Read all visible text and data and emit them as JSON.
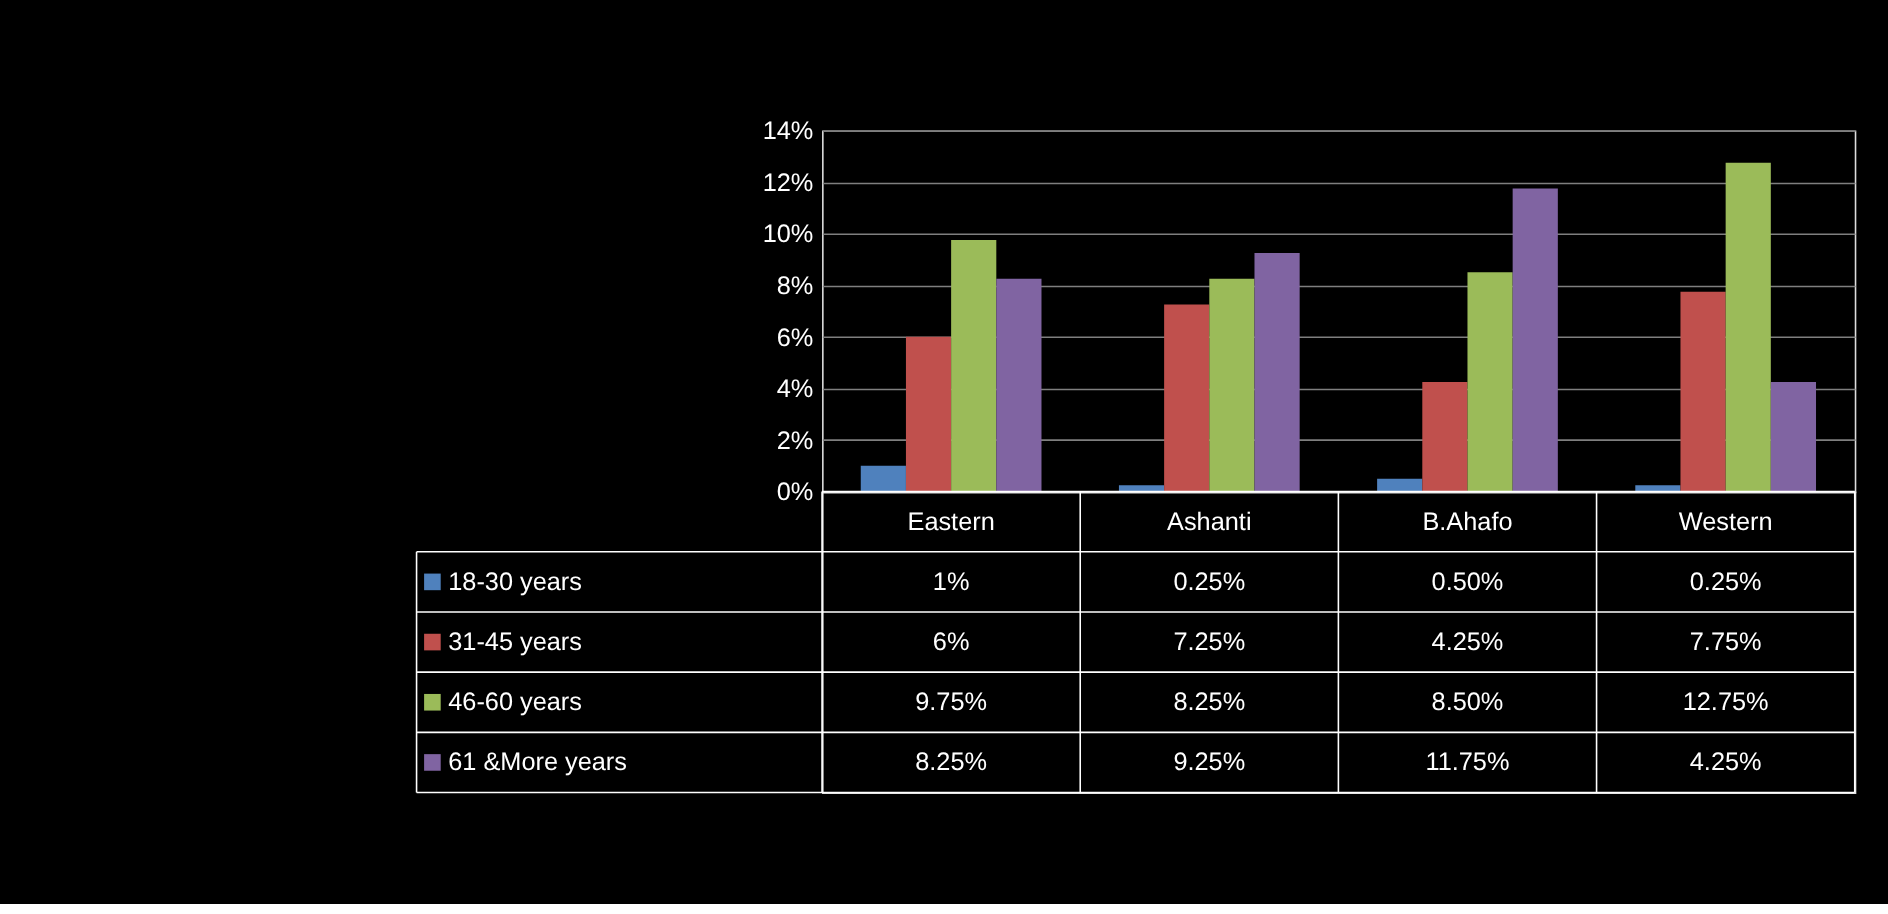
{
  "chart_data": {
    "type": "bar",
    "categories": [
      "Eastern",
      "Ashanti",
      "B.Ahafo",
      "Western"
    ],
    "series": [
      {
        "name": "18-30 years",
        "color": "#4f81bd",
        "values": [
          1,
          0.25,
          0.5,
          0.25
        ],
        "value_labels": [
          "1%",
          "0.25%",
          "0.50%",
          "0.25%"
        ]
      },
      {
        "name": "31-45 years",
        "color": "#c0504d",
        "values": [
          6,
          7.25,
          4.25,
          7.75
        ],
        "value_labels": [
          "6%",
          "7.25%",
          "4.25%",
          "7.75%"
        ]
      },
      {
        "name": "46-60 years",
        "color": "#9bbb59",
        "values": [
          9.75,
          8.25,
          8.5,
          12.75
        ],
        "value_labels": [
          "9.75%",
          "8.25%",
          "8.50%",
          "12.75%"
        ]
      },
      {
        "name": "61 &More years",
        "color": "#8064a2",
        "values": [
          8.25,
          9.25,
          11.75,
          4.25
        ],
        "value_labels": [
          "8.25%",
          "9.25%",
          "11.75%",
          "4.25%"
        ]
      }
    ],
    "ylim": [
      0,
      14
    ],
    "yticks": [
      {
        "value": 0,
        "label": "0%"
      },
      {
        "value": 2,
        "label": "2%"
      },
      {
        "value": 4,
        "label": "4%"
      },
      {
        "value": 6,
        "label": "6%"
      },
      {
        "value": 8,
        "label": "8%"
      },
      {
        "value": 10,
        "label": "10%"
      },
      {
        "value": 12,
        "label": "12%"
      },
      {
        "value": 14,
        "label": "14%"
      }
    ],
    "grid": "y",
    "legend": "bottom"
  }
}
